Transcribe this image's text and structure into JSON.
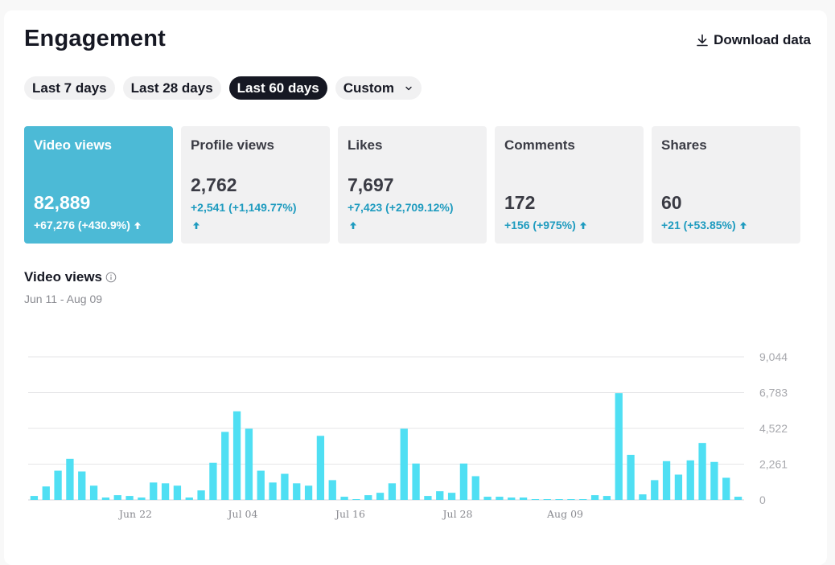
{
  "header": {
    "title": "Engagement",
    "download_label": "Download data"
  },
  "ranges": [
    {
      "label": "Last 7 days",
      "active": false
    },
    {
      "label": "Last 28 days",
      "active": false
    },
    {
      "label": "Last 60 days",
      "active": true
    },
    {
      "label": "Custom",
      "active": false
    }
  ],
  "metrics": [
    {
      "label": "Video views",
      "value": "82,889",
      "delta": "+67,276 (+430.9%)",
      "active": true
    },
    {
      "label": "Profile views",
      "value": "2,762",
      "delta": "+2,541 (+1,149.77%)",
      "active": false
    },
    {
      "label": "Likes",
      "value": "7,697",
      "delta": "+7,423 (+2,709.12%)",
      "active": false
    },
    {
      "label": "Comments",
      "value": "172",
      "delta": "+156 (+975%)",
      "active": false
    },
    {
      "label": "Shares",
      "value": "60",
      "delta": "+21 (+53.85%)",
      "active": false
    }
  ],
  "chart_section": {
    "title": "Video views",
    "date_range": "Jun 11 - Aug 09"
  },
  "colors": {
    "accent": "#4cbad6",
    "bar": "#4fdff3",
    "positive": "#1e9bbf",
    "active_pill": "#161823"
  },
  "chart_data": {
    "type": "bar",
    "title": "",
    "xlabel": "",
    "ylabel": "",
    "ylim": [
      0,
      9044
    ],
    "yticks": [
      0,
      2261,
      4522,
      6783,
      9044
    ],
    "ytick_labels": [
      "0",
      "2,261",
      "4,522",
      "6,783",
      "9,044"
    ],
    "xtick_labels": [
      {
        "label": "Jun 22",
        "index": 8.5
      },
      {
        "label": "Jul 04",
        "index": 17.5
      },
      {
        "label": "Jul 16",
        "index": 26.5
      },
      {
        "label": "Jul 28",
        "index": 35.5
      },
      {
        "label": "Aug 09",
        "index": 44.5
      }
    ],
    "values": [
      250,
      850,
      1850,
      2600,
      1800,
      900,
      150,
      300,
      250,
      150,
      1100,
      1050,
      900,
      150,
      600,
      2350,
      4300,
      5600,
      4500,
      1850,
      1100,
      1650,
      1050,
      900,
      4050,
      1250,
      200,
      50,
      300,
      450,
      1050,
      4500,
      2300,
      250,
      550,
      450,
      2300,
      1500,
      200,
      200,
      150,
      150,
      50,
      50,
      50,
      50,
      50,
      300,
      250,
      6750,
      2850,
      350,
      1250,
      2450,
      1600,
      2500,
      3600,
      2400,
      1400,
      200
    ]
  }
}
